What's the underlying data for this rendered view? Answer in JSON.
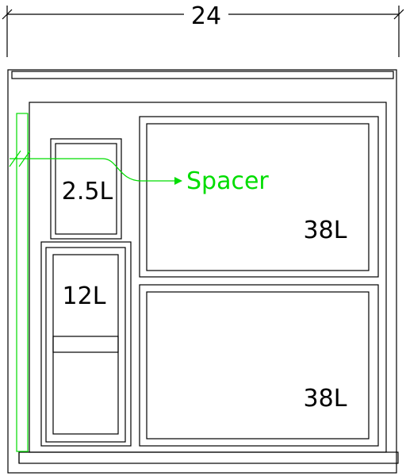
{
  "diagram": {
    "width_dimension": "24",
    "labels": {
      "small_bin": "2.5L",
      "medium_bin": "12L",
      "large_bin_top": "38L",
      "large_bin_bottom": "38L",
      "spacer": "Spacer"
    },
    "colors": {
      "lines": "#000000",
      "spacer": "#00dd00"
    }
  }
}
